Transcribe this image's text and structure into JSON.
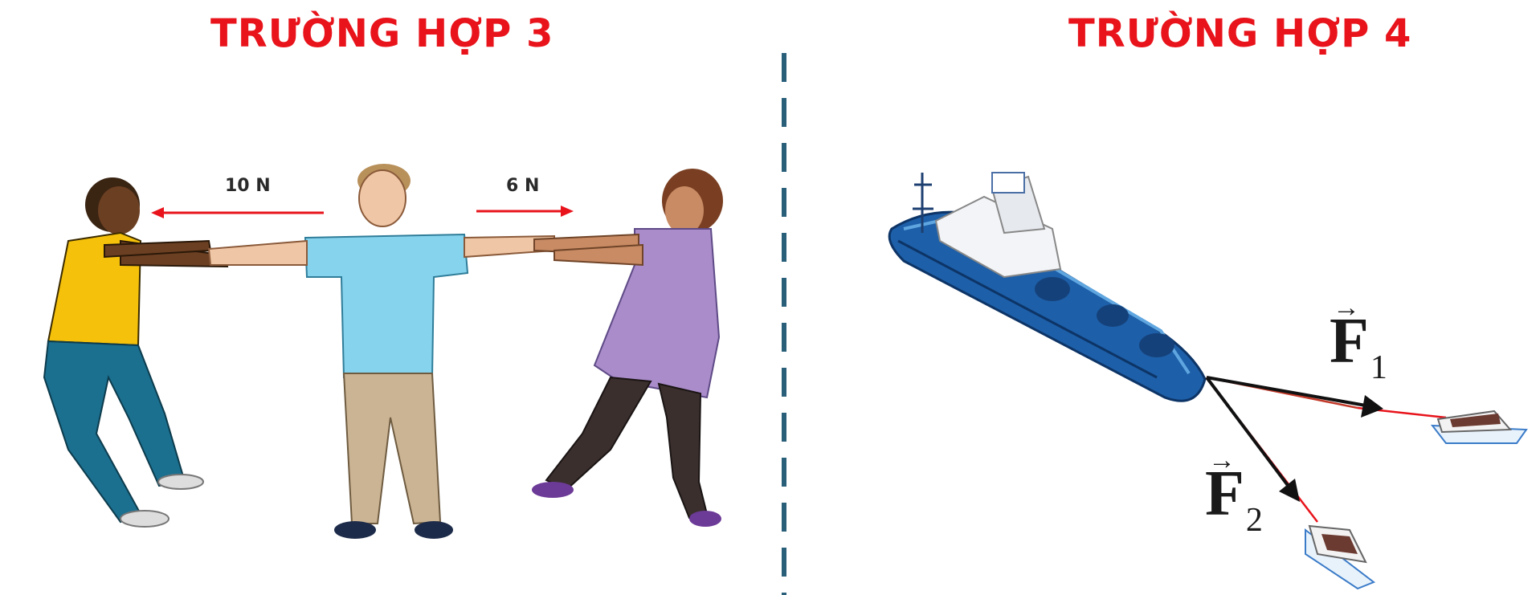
{
  "titles": {
    "left": "TRƯỜNG HỢP 3",
    "right": "TRƯỜNG HỢP 4"
  },
  "case3": {
    "force_left": "10 N",
    "force_right": "6 N"
  },
  "case4": {
    "f1": {
      "letter": "F",
      "sub": "1",
      "arrow": "→"
    },
    "f2": {
      "letter": "F",
      "sub": "2",
      "arrow": "→"
    }
  },
  "colors": {
    "title": "#e8131b",
    "force_arrow": "#e8131b",
    "divider": "#2a5f7a",
    "ship_hull": "#1d5fa8"
  }
}
